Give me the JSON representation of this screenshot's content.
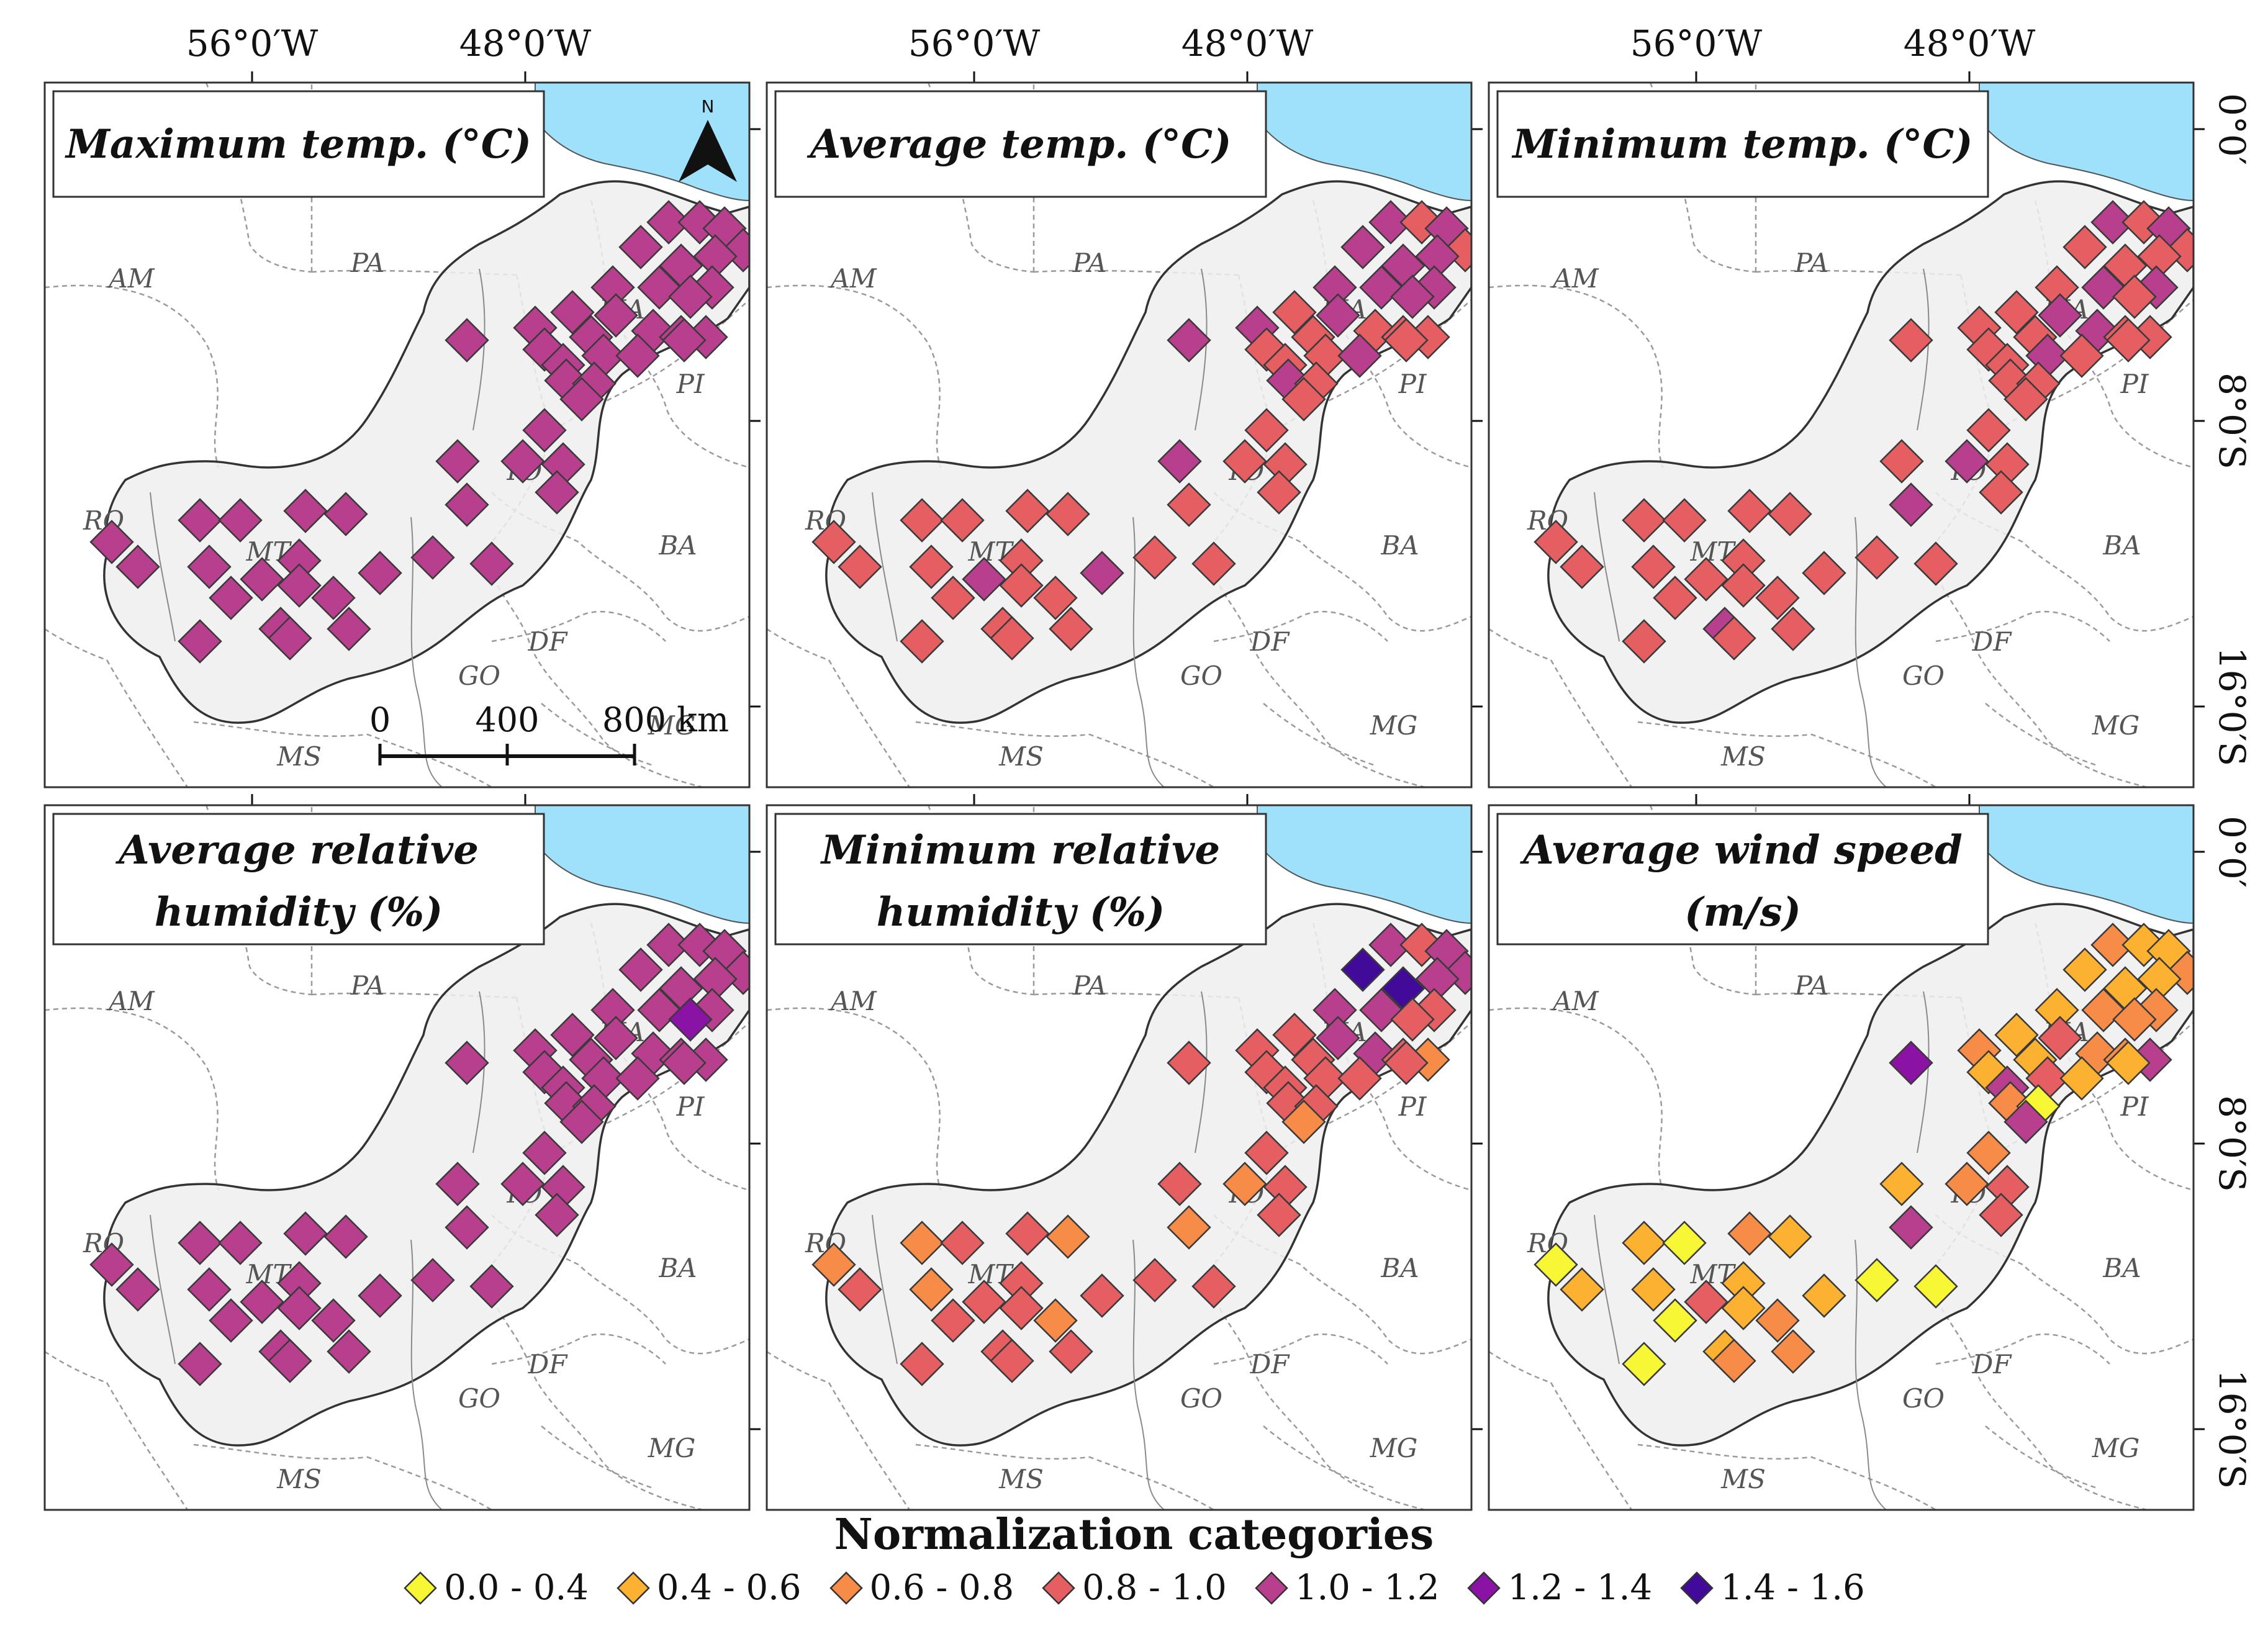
{
  "colors": {
    "ocean": "#9fe1fb",
    "study_area": "#efefef",
    "boundary": "#9a9a9a",
    "outline": "#333333",
    "categories": [
      "#f7f735",
      "#fcb130",
      "#f68c48",
      "#e45e62",
      "#b83f8d",
      "#8a13a6",
      "#420a98"
    ]
  },
  "axes": {
    "top_lon_labels": [
      "56°0′W",
      "48°0′W"
    ],
    "right_lat_labels": [
      "0°0′",
      "8°0′S",
      "16°0′S"
    ]
  },
  "north_label": "N",
  "scalebar": {
    "labels": [
      "0",
      "400",
      "800 km"
    ]
  },
  "states": [
    "AM",
    "PA",
    "PI",
    "MA",
    "RO",
    "MT",
    "TO",
    "BA",
    "DF",
    "GO",
    "MG",
    "MS"
  ],
  "panels": [
    {
      "title_lines": [
        "Maximum temp. (°C)"
      ]
    },
    {
      "title_lines": [
        "Average temp. (°C)"
      ]
    },
    {
      "title_lines": [
        "Minimum temp. (°C)"
      ]
    },
    {
      "title_lines": [
        "Average relative",
        "humidity (%)"
      ]
    },
    {
      "title_lines": [
        "Minimum relative",
        "humidity (%)"
      ]
    },
    {
      "title_lines": [
        "Average wind speed",
        "(m/s)"
      ]
    }
  ],
  "legend": {
    "title": "Normalization categories",
    "items": [
      {
        "label": "0.0 - 0.4",
        "color": "#f7f735"
      },
      {
        "label": "0.4 - 0.6",
        "color": "#fcb130"
      },
      {
        "label": "0.6 - 0.8",
        "color": "#f68c48"
      },
      {
        "label": "0.8 - 1.0",
        "color": "#e45e62"
      },
      {
        "label": "1.0 - 1.2",
        "color": "#b83f8d"
      },
      {
        "label": "1.2 - 1.4",
        "color": "#8a13a6"
      },
      {
        "label": "1.4 - 1.6",
        "color": "#420a98"
      }
    ]
  },
  "station_category_codes": [
    "4444444444444444444444444444444444444444444444444444",
    "4343444444434433333334344333343333333333333443333333",
    "4343333434334334333343333333434333333333333333433333",
    "4444444444544444444444444444444444444444444444444444",
    "4344646344334334323333333323232333222333323333323333",
    "2112111212213212241431152042214332101000111131122200"
  ]
}
